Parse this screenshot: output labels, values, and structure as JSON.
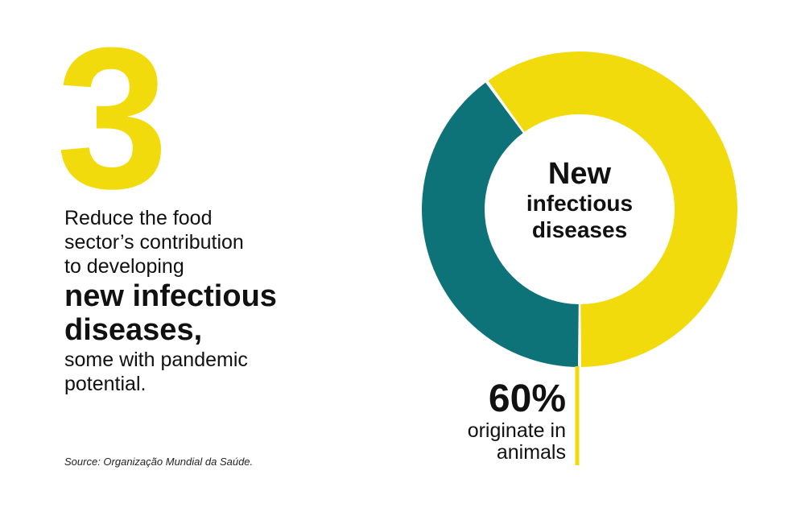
{
  "headline": {
    "number": "3",
    "text_line1": "Reduce the food",
    "text_line2": "sector’s contribution",
    "text_line3": "to developing",
    "bold_line1": "new infectious",
    "bold_line2": "diseases,",
    "text_line4": "some with pandemic",
    "text_line5": "potential."
  },
  "source": "Source: Organização  Mundial da Saúde.",
  "colors": {
    "yellow": "#F2DB0D",
    "teal": "#0E7378",
    "text": "#111111"
  },
  "chart_data": {
    "type": "pie",
    "title": "",
    "center_label": [
      "New",
      "infectious",
      "diseases"
    ],
    "slices": [
      {
        "label": "originate in animals",
        "value": 60,
        "color": "#F2DB0D"
      },
      {
        "label": "",
        "value": 40,
        "color": "#0E7378"
      }
    ],
    "annotation": {
      "value": "60%",
      "line1": "originate in",
      "line2": "animals"
    }
  }
}
